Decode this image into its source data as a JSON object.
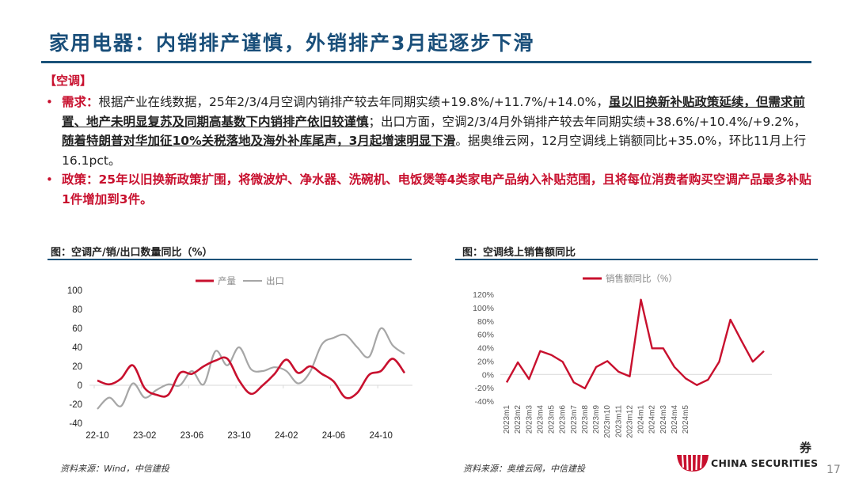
{
  "header": {
    "title": "家用电器：内销排产谨慎，外销排产3月起逐步下滑"
  },
  "section": {
    "tag": "【空调】"
  },
  "bullets": [
    {
      "label": "需求：",
      "seg1": "根据产业在线数据，25年2/3/4月空调内销排产较去年同期实绩+19.8%/+11.7%/+14.0%，",
      "seg2_underlined": "虽以旧换新补贴政策延续，但需求前置、地产未明显复苏及同期高基数下内销排产依旧较谨慎",
      "seg3": "；出口方面，空调2/3/4月外销排产较去年同期实绩+38.6%/+10.4%/+9.2%，",
      "seg4_underlined": "随着特朗普对华加征10%关税落地及海外补库尾声，3月起增速明显下滑",
      "seg5": "。据奥维云网，12月空调线上销额同比+35.0%，环比11月上行16.1pct。"
    },
    {
      "text": "政策：25年以旧换新政策扩围，将微波炉、净水器、洗碗机、电饭煲等4类家电产品纳入补贴范围，且将每位消费者购买空调产品最多补贴1件增加到3件。"
    }
  ],
  "left_chart": {
    "title": "图：空调产/销/出口数量同比（%）",
    "source": "资料来源：Wind，中信建投"
  },
  "right_chart": {
    "title": "图：空调线上销售额同比",
    "source": "资料来源：奥维云网，中信建投"
  },
  "footer": {
    "brand": "CHINA SECURITIES",
    "brand_char": "券",
    "page": "17"
  },
  "colors": {
    "title_blue": "#1a4f7a",
    "accent_red": "#c8102e",
    "series_gray": "#a6a6a6"
  },
  "chart_data": [
    {
      "type": "line",
      "title": "图：空调产/销/出口数量同比（%）",
      "xlabel": "",
      "ylabel": "",
      "ylim": [
        -40,
        100
      ],
      "yticks": [
        100,
        80,
        60,
        40,
        20,
        0,
        -20,
        -40
      ],
      "xticks": [
        "22-10",
        "23-02",
        "23-06",
        "23-10",
        "24-02",
        "24-06",
        "24-10"
      ],
      "legend": [
        "产量",
        "出口"
      ],
      "legend_position": "top",
      "grid": false,
      "x": [
        "22-10",
        "22-11",
        "22-12",
        "23-01",
        "23-02",
        "23-03",
        "23-04",
        "23-05",
        "23-06",
        "23-07",
        "23-08",
        "23-09",
        "23-10",
        "23-11",
        "23-12",
        "24-01",
        "24-02",
        "24-03",
        "24-04",
        "24-05",
        "24-06",
        "24-07",
        "24-08",
        "24-09",
        "24-10",
        "24-11",
        "24-12"
      ],
      "series": [
        {
          "name": "产量",
          "color": "#c8102e",
          "values": [
            5,
            1,
            7,
            21,
            -3,
            -10,
            -10,
            13,
            12,
            20,
            26,
            28,
            5,
            -9,
            0,
            12,
            27,
            13,
            20,
            12,
            4,
            -13,
            -8,
            11,
            15,
            28,
            13
          ]
        },
        {
          "name": "出口",
          "color": "#a6a6a6",
          "values": [
            -25,
            -13,
            -22,
            2,
            -13,
            -5,
            1,
            0,
            15,
            1,
            36,
            21,
            40,
            17,
            15,
            19,
            15,
            2,
            14,
            43,
            50,
            53,
            40,
            30,
            60,
            42,
            33
          ]
        }
      ]
    },
    {
      "type": "line",
      "title": "图：空调线上销售额同比",
      "xlabel": "",
      "ylabel": "",
      "ylim": [
        -40,
        120
      ],
      "yticks": [
        "120%",
        "100%",
        "80%",
        "60%",
        "40%",
        "20%",
        "0%",
        "-20%",
        "-40%"
      ],
      "xticks": [
        "2023m1",
        "2023m2",
        "2023m3",
        "2023m4",
        "2023m5",
        "2023m6",
        "2023m7",
        "2023m8",
        "2023m9",
        "2023m10",
        "2023m11",
        "2023m12",
        "2024m1",
        "2024m2",
        "2024m3",
        "2024m4",
        "2024m5"
      ],
      "legend": [
        "销售额同比（%）"
      ],
      "legend_position": "top",
      "grid": false,
      "x": [
        "2023m1",
        "2023m2",
        "2023m3",
        "2023m4",
        "2023m5",
        "2023m6",
        "2023m7",
        "2023m8",
        "2023m9",
        "2023m10",
        "2023m11",
        "2023m12",
        "2024m1",
        "2024m2",
        "2024m3",
        "2024m4",
        "2024m5",
        "2024m6",
        "2024m7",
        "2024m8",
        "2024m9",
        "2024m10",
        "2024m11",
        "2024m12"
      ],
      "series": [
        {
          "name": "销售额同比（%）",
          "color": "#c8102e",
          "values": [
            -12,
            18,
            -7,
            35,
            29,
            19,
            -12,
            -21,
            11,
            20,
            4,
            -3,
            112,
            39,
            39,
            11,
            -6,
            -16,
            -8,
            19,
            82,
            50,
            19,
            35
          ]
        }
      ]
    }
  ]
}
